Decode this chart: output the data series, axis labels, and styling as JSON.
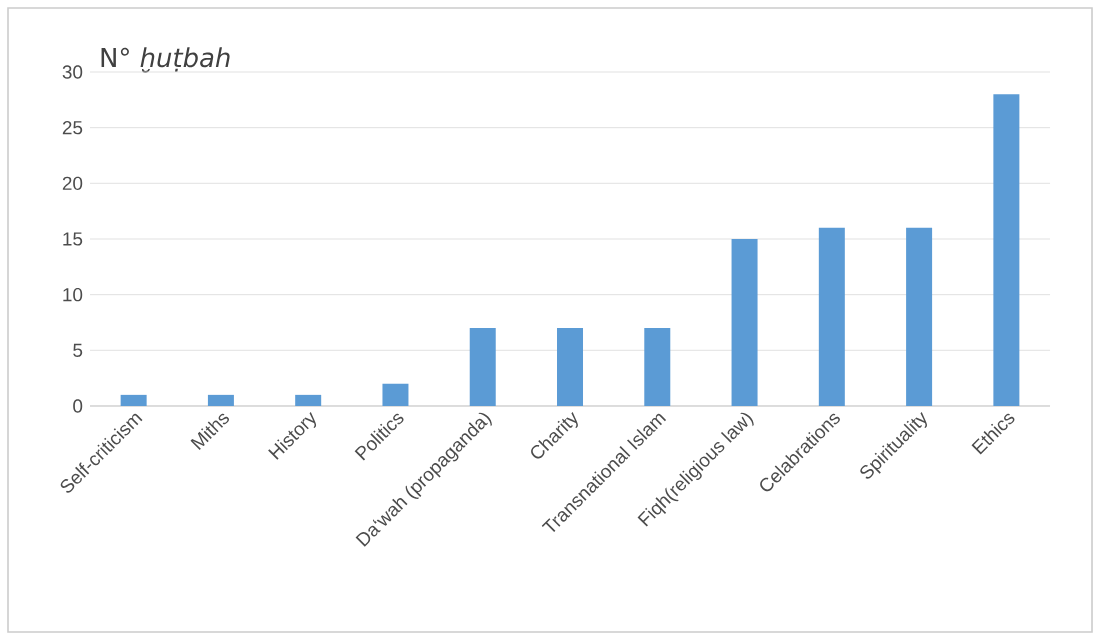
{
  "chart_data": {
    "type": "bar",
    "title": "N° *ḫuṭbah*",
    "categories": [
      "Self-criticism",
      "Miths",
      "History",
      "Politics",
      "Da‘wah (propaganda)",
      "Charity",
      "Transnational Islam",
      "Fiqh(religious law)",
      "Celabrations",
      "Spirituality",
      "Ethics"
    ],
    "values": [
      1,
      1,
      1,
      2,
      7,
      7,
      7,
      15,
      16,
      16,
      28
    ],
    "color": "#5b9bd5",
    "ylim": [
      0,
      30
    ],
    "yticks": [
      0,
      5,
      10,
      15,
      20,
      25,
      30
    ],
    "grid": "y"
  }
}
